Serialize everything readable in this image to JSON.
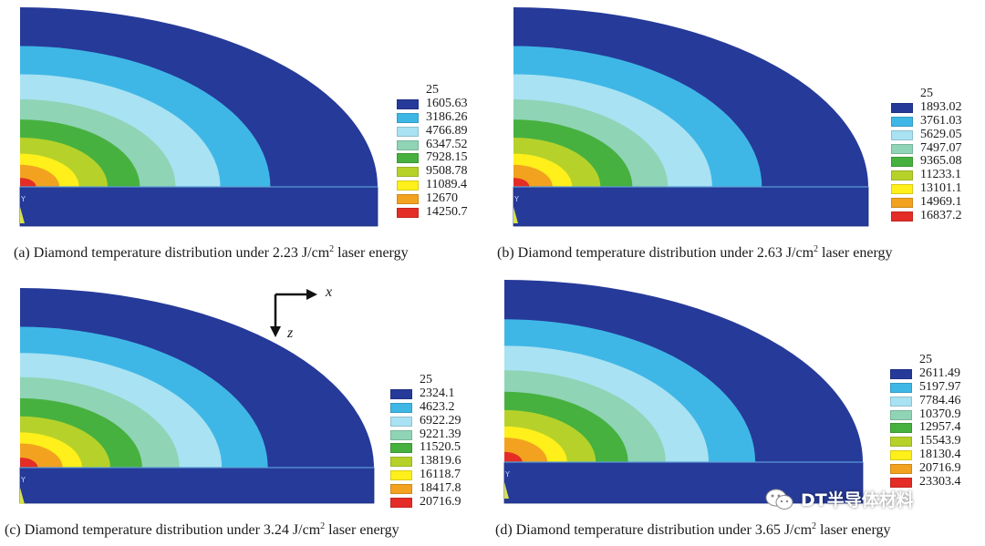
{
  "palette": [
    "#263a99",
    "#3fb7e6",
    "#a9e2f2",
    "#8fd4b5",
    "#47b13f",
    "#b6d22a",
    "#ffef1a",
    "#f2a21f",
    "#e32d26"
  ],
  "panels": [
    {
      "caption": {
        "prefix": "(a) Diamond temperature distribution under 2.23 J/cm",
        "sup": "2",
        "suffix": " laser energy"
      },
      "legend": {
        "min": "25",
        "values": [
          "1605.63",
          "3186.26",
          "4766.89",
          "6347.52",
          "7928.15",
          "9508.78",
          "11089.4",
          "12670",
          "14250.7"
        ]
      }
    },
    {
      "caption": {
        "prefix": "(b) Diamond temperature distribution under 2.63 J/cm",
        "sup": "2",
        "suffix": " laser energy"
      },
      "legend": {
        "min": "25",
        "values": [
          "1893.02",
          "3761.03",
          "5629.05",
          "7497.07",
          "9365.08",
          "11233.1",
          "13101.1",
          "14969.1",
          "16837.2"
        ]
      }
    },
    {
      "caption": {
        "prefix": "(c) Diamond temperature distribution under 3.24 J/cm",
        "sup": "2",
        "suffix": " laser energy"
      },
      "legend": {
        "min": "25",
        "values": [
          "2324.1",
          "4623.2",
          "6922.29",
          "9221.39",
          "11520.5",
          "13819.6",
          "16118.7",
          "18417.8",
          "20716.9"
        ]
      }
    },
    {
      "caption": {
        "prefix": "(d) Diamond temperature distribution under 3.65 J/cm",
        "sup": "2",
        "suffix": " laser energy"
      },
      "legend": {
        "min": "25",
        "values": [
          "2611.49",
          "5197.97",
          "7784.46",
          "10370.9",
          "12957.4",
          "15543.9",
          "18130.4",
          "20716.9",
          "23303.4"
        ]
      }
    }
  ],
  "axes": {
    "x": "x",
    "z": "z"
  },
  "watermark": "DT半导体材料"
}
